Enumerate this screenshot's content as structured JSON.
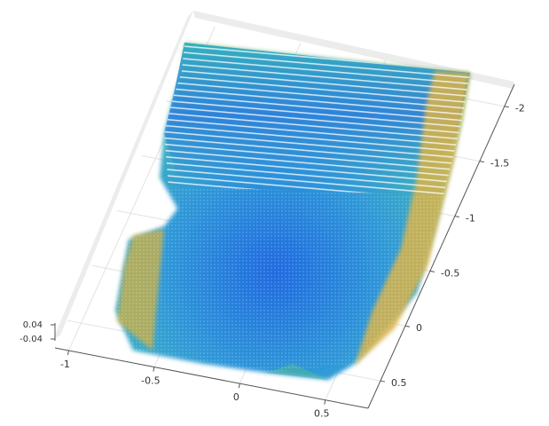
{
  "chart_data": {
    "type": "scatter3d",
    "xlim": [
      -1.08,
      0.75
    ],
    "xticks": [
      -1,
      -0.5,
      0,
      0.5
    ],
    "ylim": [
      0.75,
      -2.2
    ],
    "yticks": [
      0.5,
      0,
      -0.5,
      -1,
      -1.5,
      -2
    ],
    "zlim": [
      -0.05,
      0.05
    ],
    "zticks": [
      0.04,
      -0.04
    ],
    "grid": true
  }
}
